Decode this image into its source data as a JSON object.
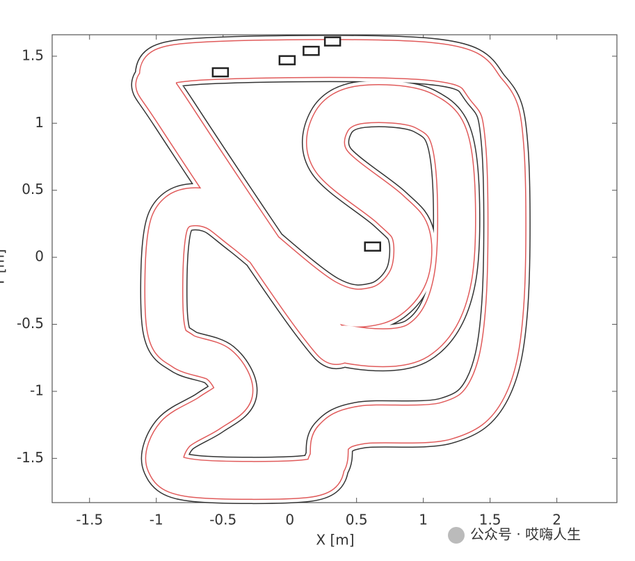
{
  "chart_data": {
    "type": "track",
    "xlabel": "X [m]",
    "ylabel": "Y [m]",
    "xlim": [
      -1.78,
      2.45
    ],
    "ylim": [
      -1.83,
      1.66
    ],
    "xticks": [
      -1.5,
      -1,
      -0.5,
      0,
      0.5,
      1,
      1.5,
      2
    ],
    "yticks": [
      -1.5,
      -1,
      -0.5,
      0,
      0.5,
      1,
      1.5
    ],
    "series": [
      {
        "name": "track",
        "color": "#e05a5a",
        "x": [
          -0.71,
          1.06,
          1.48,
          1.61,
          1.61,
          1.48,
          1.17,
          0.54,
          0.32,
          0.28,
          0.13,
          -0.71,
          -0.93,
          -0.86,
          -0.6,
          -0.42,
          -0.53,
          -0.8,
          -0.93,
          -0.93,
          -0.84,
          -0.6,
          -0.34,
          0.28,
          0.65,
          0.88,
          0.91,
          0.75,
          0.31,
          0.31,
          0.54,
          1.01,
          1.22,
          1.22,
          0.96,
          0.44,
          0.18,
          -0.86,
          -0.99
        ],
        "values": [
          1.46,
          1.46,
          1.24,
          0.83,
          -0.36,
          -0.98,
          -1.22,
          -1.25,
          -1.35,
          -1.53,
          -1.65,
          -1.65,
          -1.54,
          -1.32,
          -1.16,
          -1.01,
          -0.8,
          -0.7,
          -0.52,
          0.1,
          0.34,
          0.36,
          0.18,
          -0.31,
          -0.36,
          -0.16,
          0.16,
          0.36,
          0.72,
          1.01,
          1.14,
          1.09,
          0.78,
          -0.16,
          -0.62,
          -0.65,
          -0.47,
          1.06,
          1.32
        ]
      }
    ],
    "obstacles": {
      "x": [
        -0.52,
        -0.02,
        0.16,
        0.32,
        0.62
      ],
      "values": [
        1.38,
        1.47,
        1.54,
        1.61,
        0.08
      ]
    },
    "watermark": "公众号 · 哎嗨人生"
  }
}
